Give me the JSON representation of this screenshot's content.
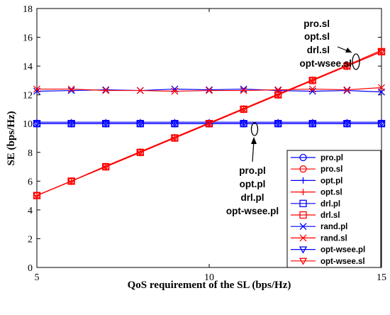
{
  "colors": {
    "blue": "#0000ff",
    "red": "#ff0000"
  },
  "chart_data": {
    "type": "line",
    "xlabel": "QoS requirement of the SL (bps/Hz)",
    "ylabel": "SE (bps/Hz)",
    "xlim": [
      5,
      15
    ],
    "ylim": [
      0,
      18
    ],
    "xticks": [
      5,
      10,
      15
    ],
    "yticks": [
      0,
      2,
      4,
      6,
      8,
      10,
      12,
      14,
      16,
      18
    ],
    "grid": false,
    "legend_position": "bottom-right",
    "x": [
      5,
      6,
      7,
      8,
      9,
      10,
      11,
      12,
      13,
      14,
      15
    ],
    "series": [
      {
        "name": "pro.pl",
        "color": "blue",
        "marker": "circle",
        "values": [
          10,
          10,
          10,
          10,
          10,
          10,
          10,
          10,
          10,
          10,
          10
        ]
      },
      {
        "name": "pro.sl",
        "color": "red",
        "marker": "circle",
        "values": [
          5,
          6,
          7,
          8,
          9,
          10,
          11,
          12,
          13,
          14,
          15
        ]
      },
      {
        "name": "opt.pl",
        "color": "blue",
        "marker": "plus",
        "values": [
          10.1,
          10.1,
          10.1,
          10.1,
          10.1,
          10.1,
          10.1,
          10.1,
          10.1,
          10.1,
          10.1
        ]
      },
      {
        "name": "opt.sl",
        "color": "red",
        "marker": "plus",
        "values": [
          5,
          6,
          7.05,
          8.05,
          9.05,
          10.05,
          11.05,
          12.05,
          13.05,
          14.05,
          15.1
        ]
      },
      {
        "name": "drl.pl",
        "color": "blue",
        "marker": "square",
        "values": [
          10,
          10,
          10,
          10,
          10,
          10,
          10,
          10,
          10,
          10,
          10
        ]
      },
      {
        "name": "drl.sl",
        "color": "red",
        "marker": "square",
        "values": [
          5,
          6,
          7,
          8,
          9,
          10,
          11,
          12,
          13,
          14,
          15
        ]
      },
      {
        "name": "rand.pl",
        "color": "blue",
        "marker": "x",
        "values": [
          12.25,
          12.3,
          12.35,
          12.3,
          12.4,
          12.35,
          12.4,
          12.3,
          12.25,
          12.3,
          12.2
        ]
      },
      {
        "name": "rand.sl",
        "color": "red",
        "marker": "x",
        "values": [
          12.4,
          12.4,
          12.3,
          12.3,
          12.25,
          12.3,
          12.3,
          12.35,
          12.4,
          12.35,
          12.5
        ]
      },
      {
        "name": "opt-wsee.pl",
        "color": "blue",
        "marker": "triangle-down",
        "values": [
          10,
          10,
          10,
          10,
          10,
          10,
          10,
          10,
          10,
          10,
          10
        ]
      },
      {
        "name": "opt-wsee.sl",
        "color": "red",
        "marker": "triangle-down",
        "values": [
          5,
          6,
          7,
          8,
          9,
          10,
          11,
          12,
          13,
          14,
          15
        ]
      }
    ],
    "annotations": [
      {
        "lines": [
          "pro.sl",
          "opt.sl",
          "drl.sl",
          "opt-wsee.sl"
        ],
        "target": [
          14.4,
          14.4
        ]
      },
      {
        "lines": [
          "pro.pl",
          "opt.pl",
          "drl.pl",
          "opt-wsee.pl"
        ],
        "target": [
          11.5,
          10
        ]
      }
    ]
  }
}
